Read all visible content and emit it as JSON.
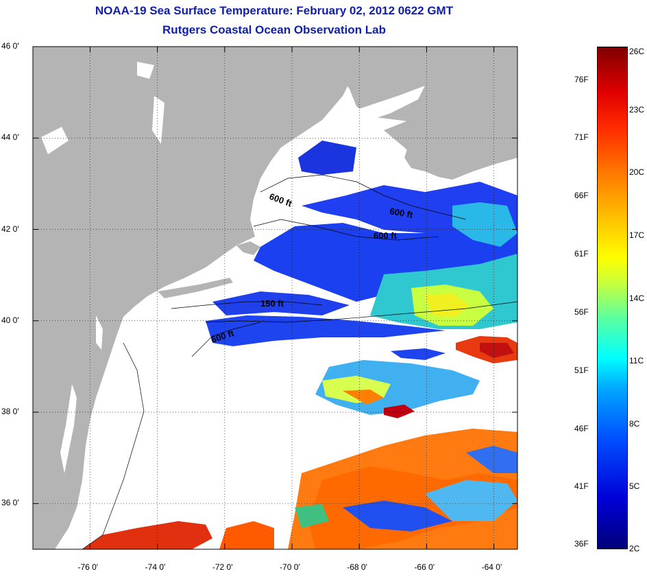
{
  "title": "NOAA-19 Sea Surface Temperature:  February 02, 2012 0622 GMT",
  "subtitle": "Rutgers Coastal Ocean Observation Lab",
  "map": {
    "x_ticks": [
      "-76 0'",
      "-74 0'",
      "-72 0'",
      "-70 0'",
      "-68 0'",
      "-66 0'",
      "-64 0'"
    ],
    "y_ticks": [
      "46 0'",
      "44 0'",
      "42 0'",
      "40 0'",
      "38 0'",
      "36 0'"
    ],
    "x_tick_values": [
      -76,
      -74,
      -72,
      -70,
      -68,
      -66,
      -64
    ],
    "y_tick_values": [
      46,
      44,
      42,
      40,
      38,
      36
    ],
    "lon_range": [
      -77.7,
      -63.3
    ],
    "lat_range": [
      35.0,
      46.0
    ],
    "grid": "dotted",
    "land_color": "#b4b4b4",
    "cloud_color": "#ffffff",
    "contour_labels": [
      "600 ft",
      "600 ft",
      "600 ft",
      "150 ft",
      "600 ft"
    ]
  },
  "colorbar": {
    "fahrenheit_labels": [
      "76F",
      "71F",
      "66F",
      "61F",
      "56F",
      "51F",
      "46F",
      "41F",
      "36F"
    ],
    "fahrenheit_values": [
      76,
      71,
      66,
      61,
      56,
      51,
      46,
      41,
      36
    ],
    "celsius_labels": [
      "26C",
      "23C",
      "20C",
      "17C",
      "14C",
      "11C",
      "8C",
      "5C",
      "2C"
    ],
    "celsius_values": [
      26,
      23,
      20,
      17,
      14,
      11,
      8,
      5,
      2
    ],
    "range_celsius": [
      2,
      26
    ],
    "colormap": "jet"
  }
}
